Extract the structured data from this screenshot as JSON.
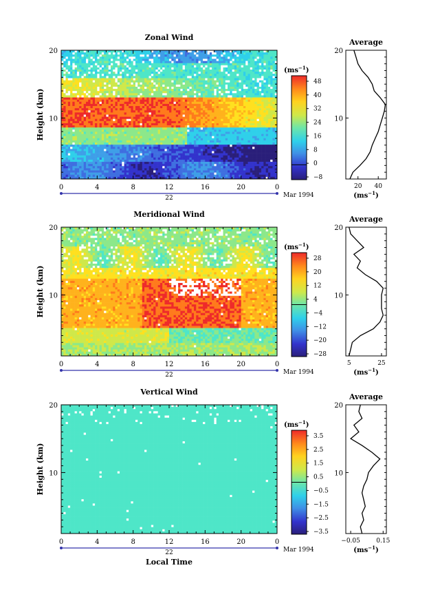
{
  "chart_data": [
    {
      "type": "heatmap",
      "title": "Zonal Wind",
      "ylabel": "Height (km)",
      "xticks": [
        "0",
        "4",
        "8",
        "12",
        "16",
        "20",
        "0"
      ],
      "yticks": [
        "10",
        "20"
      ],
      "xlim": [
        0,
        24
      ],
      "ylim": [
        1,
        20
      ],
      "date_label": "22",
      "month_label": "Mar 1994",
      "colorbar": {
        "unit": "(ms",
        "unit_sup": "−1",
        "unit_close": ")",
        "labels": [
          "48",
          "40",
          "32",
          "24",
          "16",
          "8",
          "0",
          "−8"
        ],
        "range": [
          -8,
          48
        ]
      },
      "profile": {
        "title": "Average",
        "xlabel": "(ms",
        "xlabel_sup": "−1",
        "xlabel_close": ")",
        "xticks": [
          "20",
          "40"
        ],
        "yticks": [
          "10",
          "20"
        ],
        "xlim": [
          8,
          48
        ],
        "heights": [
          1,
          2,
          3,
          4,
          5,
          6,
          7,
          8,
          9,
          10,
          11,
          12,
          13,
          14,
          15,
          16,
          17,
          18,
          19,
          20
        ],
        "values": [
          12,
          15,
          22,
          28,
          32,
          34,
          37,
          40,
          42,
          44,
          46,
          47,
          42,
          36,
          34,
          30,
          24,
          20,
          18,
          16
        ]
      }
    },
    {
      "type": "heatmap",
      "title": "Meridional Wind",
      "ylabel": "Height (km)",
      "xticks": [
        "0",
        "4",
        "8",
        "12",
        "16",
        "20",
        "0"
      ],
      "yticks": [
        "10",
        "20"
      ],
      "xlim": [
        0,
        24
      ],
      "ylim": [
        1,
        20
      ],
      "date_label": "22",
      "month_label": "Mar 1994",
      "colorbar": {
        "unit": "(ms",
        "unit_sup": "−1",
        "unit_close": ")",
        "labels": [
          "28",
          "20",
          "12",
          "4",
          "−4",
          "−12",
          "−20",
          "−28"
        ],
        "range": [
          -28,
          28
        ]
      },
      "profile": {
        "title": "Average",
        "xlabel": "(ms",
        "xlabel_sup": "−1",
        "xlabel_close": ")",
        "xticks": [
          "5",
          "25"
        ],
        "yticks": [
          "10",
          "20"
        ],
        "xlim": [
          3,
          28
        ],
        "heights": [
          1,
          2,
          3,
          4,
          5,
          6,
          7,
          8,
          9,
          10,
          11,
          12,
          13,
          14,
          15,
          16,
          17,
          18,
          19,
          20
        ],
        "values": [
          5,
          6,
          7,
          12,
          20,
          24,
          26,
          25,
          25,
          25,
          26,
          22,
          15,
          10,
          12,
          8,
          14,
          10,
          6,
          5
        ]
      }
    },
    {
      "type": "heatmap",
      "title": "Vertical Wind",
      "ylabel": "Height (km)",
      "xlabel": "Local Time",
      "xticks": [
        "0",
        "4",
        "8",
        "12",
        "16",
        "20",
        "0"
      ],
      "yticks": [
        "10",
        "20"
      ],
      "xlim": [
        0,
        24
      ],
      "ylim": [
        1,
        20
      ],
      "date_label": "22",
      "month_label": "Mar 1994",
      "colorbar": {
        "unit": "(ms",
        "unit_sup": "−1",
        "unit_close": ")",
        "labels": [
          "3.5",
          "2.5",
          "1.5",
          "0.5",
          "−0.5",
          "−1.5",
          "−2.5",
          "−3.5"
        ],
        "range": [
          -3.5,
          3.5
        ]
      },
      "profile": {
        "title": "Average",
        "xlabel": "(ms",
        "xlabel_sup": "−1",
        "xlabel_close": ")",
        "xticks": [
          "−0.05",
          "0.15"
        ],
        "yticks": [
          "10",
          "20"
        ],
        "xlim": [
          -0.08,
          0.17
        ],
        "heights": [
          1,
          2,
          3,
          4,
          5,
          6,
          7,
          8,
          9,
          10,
          11,
          12,
          13,
          14,
          15,
          16,
          17,
          18,
          19,
          20
        ],
        "values": [
          0.02,
          0.01,
          0.03,
          0.02,
          0.04,
          0.03,
          0.02,
          0.03,
          0.05,
          0.06,
          0.09,
          0.13,
          0.08,
          0.02,
          -0.05,
          0.0,
          -0.03,
          0.02,
          0.0,
          0.01
        ]
      }
    }
  ]
}
